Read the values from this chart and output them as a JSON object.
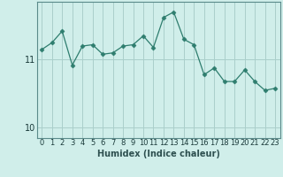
{
  "x": [
    0,
    1,
    2,
    3,
    4,
    5,
    6,
    7,
    8,
    9,
    10,
    11,
    12,
    13,
    14,
    15,
    16,
    17,
    18,
    19,
    20,
    21,
    22,
    23
  ],
  "y": [
    11.15,
    11.25,
    11.42,
    10.92,
    11.2,
    11.22,
    11.08,
    11.1,
    11.2,
    11.22,
    11.35,
    11.18,
    11.62,
    11.7,
    11.3,
    11.22,
    10.78,
    10.88,
    10.68,
    10.68,
    10.85,
    10.68,
    10.55,
    10.58
  ],
  "line_color": "#2e7d6e",
  "marker": "D",
  "marker_size": 2.5,
  "background_color": "#d0eeea",
  "grid_color": "#aacfcb",
  "xlabel": "Humidex (Indice chaleur)",
  "yticks": [
    10,
    11
  ],
  "xticks": [
    0,
    1,
    2,
    3,
    4,
    5,
    6,
    7,
    8,
    9,
    10,
    11,
    12,
    13,
    14,
    15,
    16,
    17,
    18,
    19,
    20,
    21,
    22,
    23
  ],
  "ylim": [
    9.85,
    11.85
  ],
  "xlim": [
    -0.5,
    23.5
  ],
  "xlabel_fontsize": 7,
  "tick_fontsize": 6,
  "ytick_fontsize": 7
}
